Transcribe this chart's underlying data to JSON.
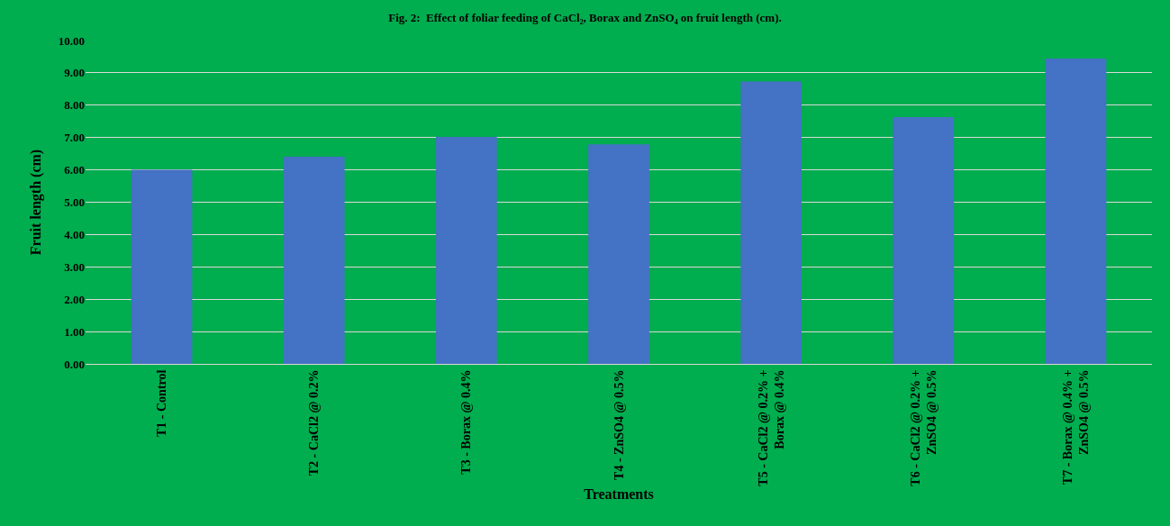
{
  "chart_data": {
    "type": "bar",
    "title": "Fig. 2:  Effect of foliar feeding of CaCl₂, Borax and ZnSO₄ on fruit length (cm).",
    "xlabel": "Treatments",
    "ylabel": "Fruit length (cm)",
    "categories": [
      "T1 - Control",
      "T2 - CaCl2 @ 0.2%",
      "T3 - Borax @ 0.4%",
      "T4 - ZnSO4 @ 0.5%",
      "T5 - CaCl2 @ 0.2% + Borax @ 0.4%",
      "T6 - CaCl2 @ 0.2% + ZnSO4 @ 0.5%",
      "T7 - Borax @ 0.4% + ZnSO4 @ 0.5%"
    ],
    "values": [
      6.0,
      6.41,
      7.02,
      6.79,
      8.73,
      7.63,
      9.44
    ],
    "color": "#4472c4",
    "ylim": [
      0,
      10
    ],
    "yticks": [
      {
        "value": 0,
        "label": "0.00"
      },
      {
        "value": 1,
        "label": "1.00"
      },
      {
        "value": 2,
        "label": "2.00"
      },
      {
        "value": 3,
        "label": "3.00"
      },
      {
        "value": 4,
        "label": "4.00"
      },
      {
        "value": 5,
        "label": "5.00"
      },
      {
        "value": 6,
        "label": "6.00"
      },
      {
        "value": 7,
        "label": "7.00"
      },
      {
        "value": 8,
        "label": "8.00"
      },
      {
        "value": 9,
        "label": "9.00"
      },
      {
        "value": 10,
        "label": "10.00"
      }
    ],
    "grid": "y",
    "legend": false
  }
}
